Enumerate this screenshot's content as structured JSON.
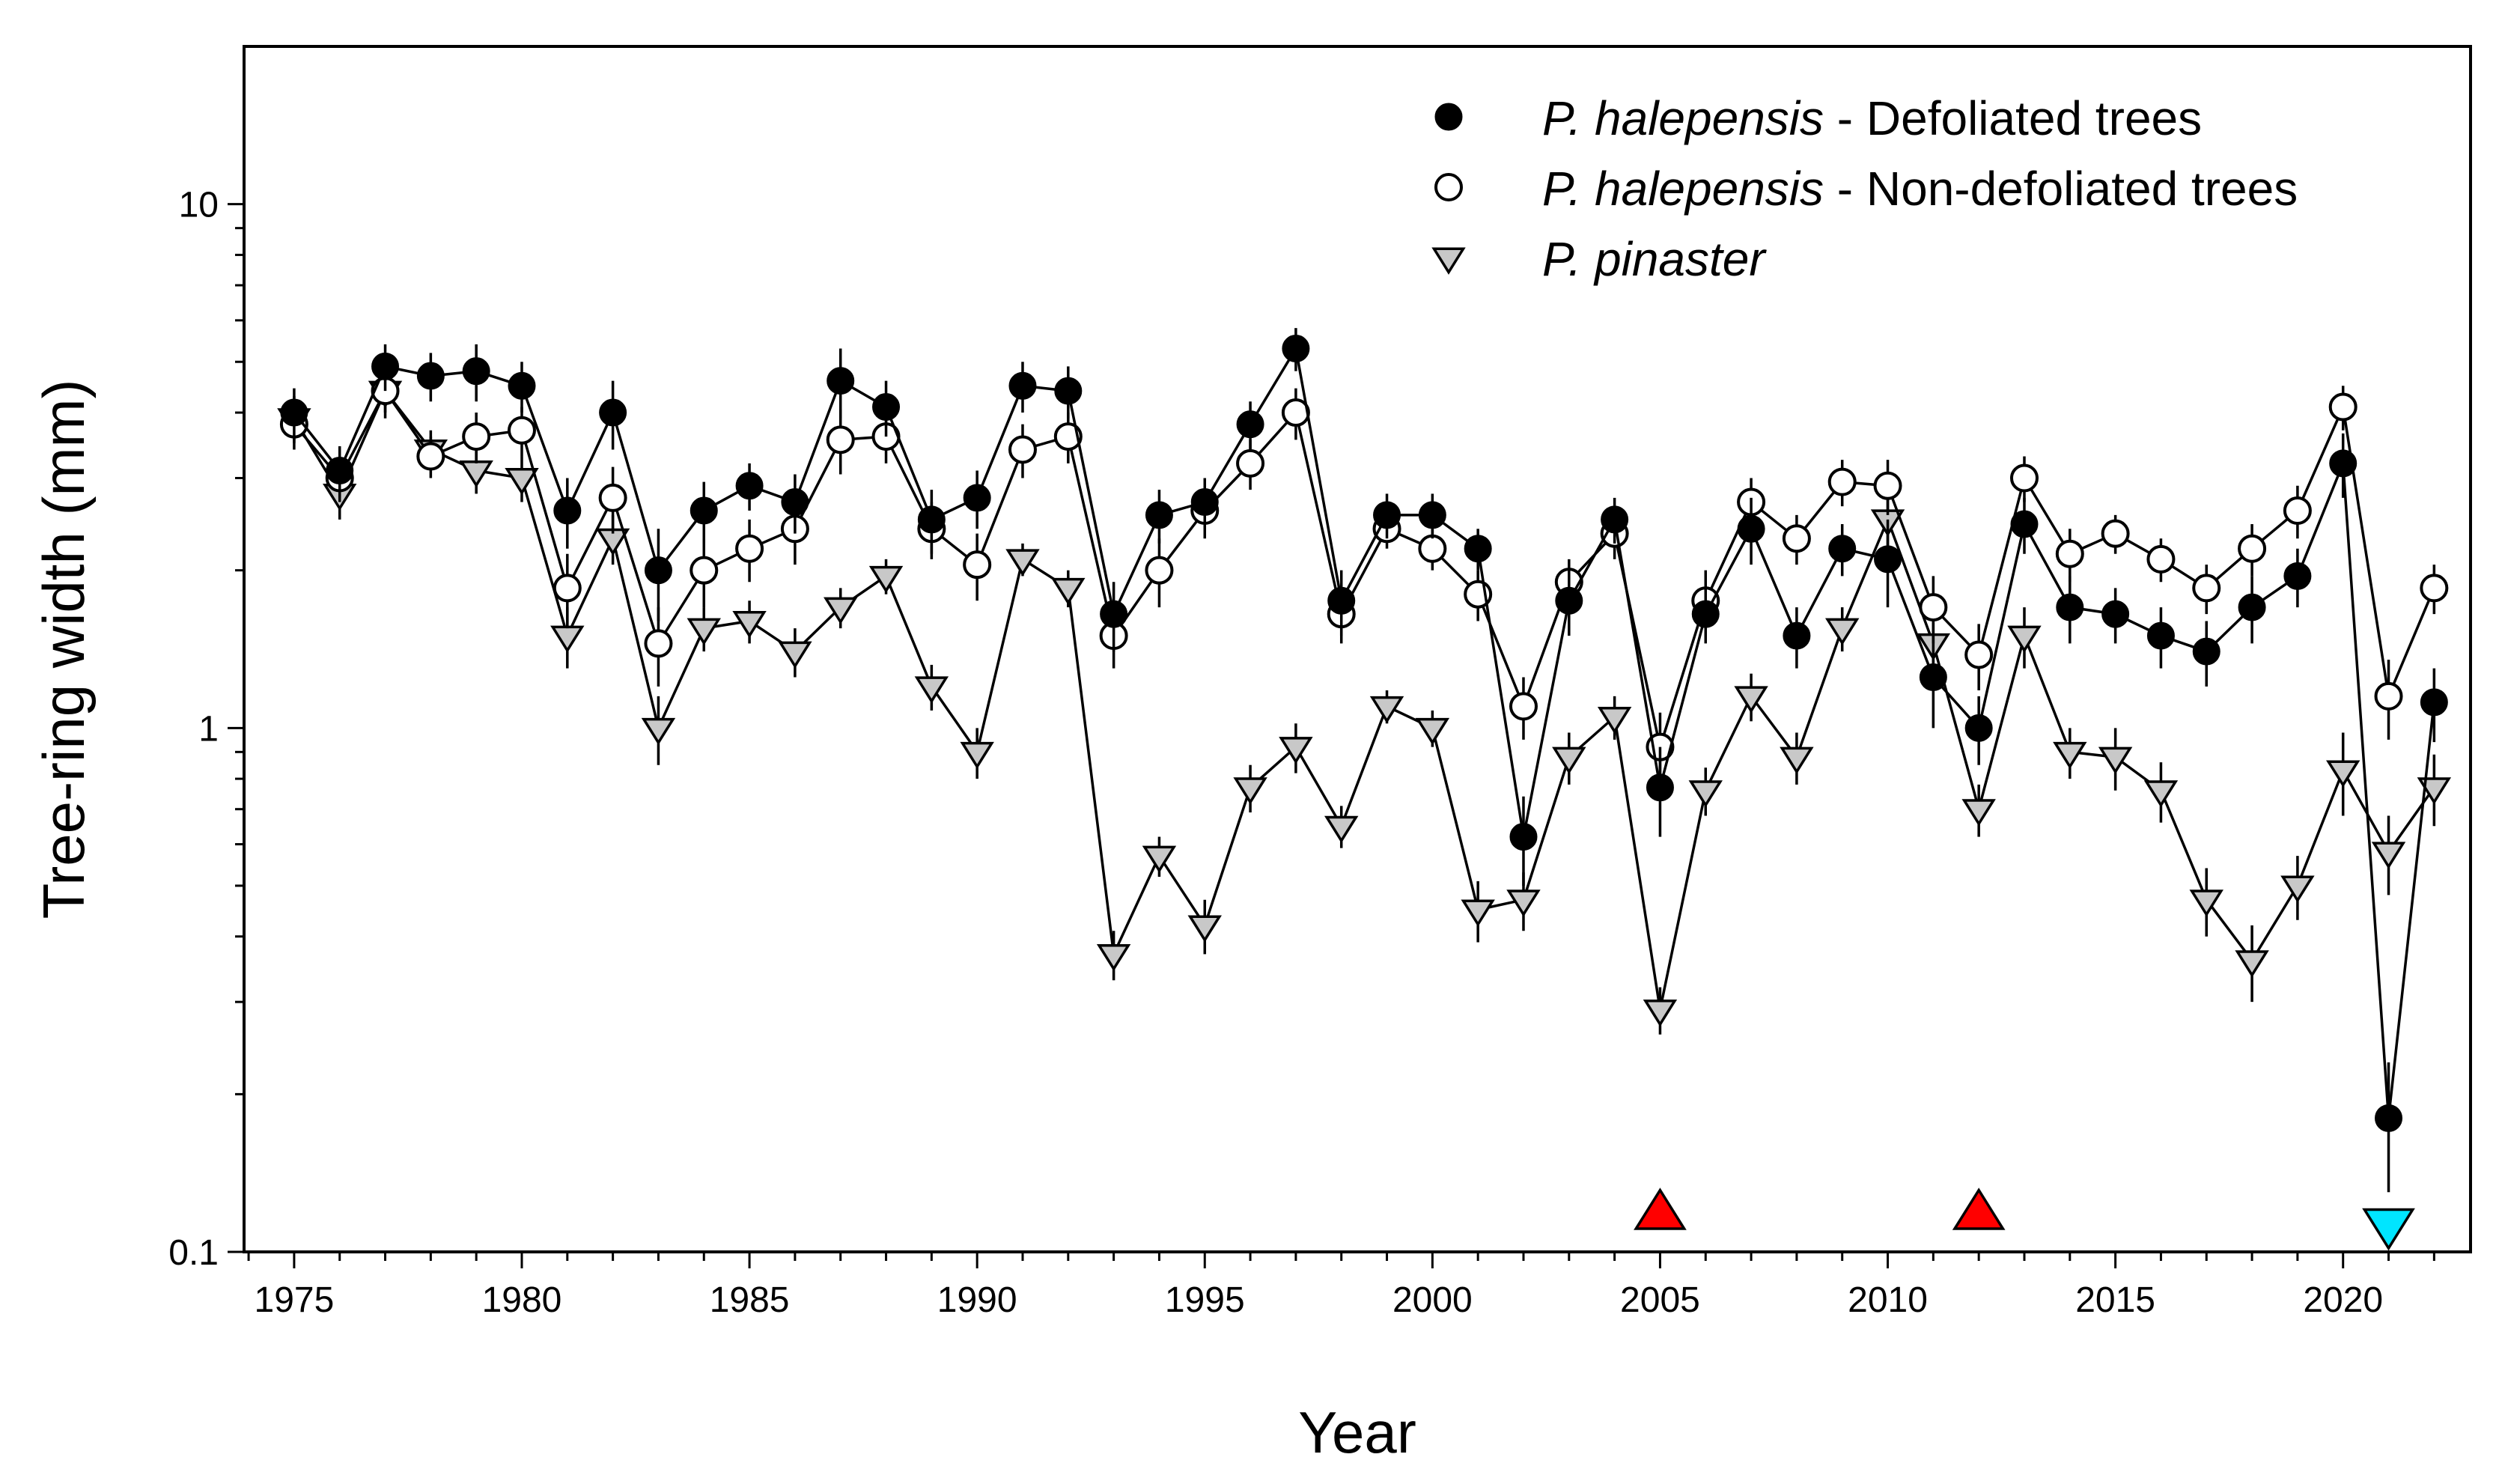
{
  "chart_data": {
    "type": "line",
    "title": "",
    "xlabel": "Year",
    "ylabel": "Tree-ring width (mm)",
    "yscale": "log",
    "ylim": [
      0.1,
      20
    ],
    "xlim": [
      1973.9,
      2022.8
    ],
    "x_ticks": [
      1975,
      1980,
      1985,
      1990,
      1995,
      2000,
      2005,
      2010,
      2015,
      2020
    ],
    "x_tick_labels": [
      "1975",
      "1980",
      "1985",
      "1990",
      "1995",
      "2000",
      "2005",
      "2010",
      "2015",
      "2020"
    ],
    "y_ticks": [
      0.1,
      1,
      10
    ],
    "y_tick_labels": [
      "0.1",
      "1",
      "10"
    ],
    "grid": false,
    "legend_position": "top-right",
    "x": [
      1975,
      1976,
      1977,
      1978,
      1979,
      1980,
      1981,
      1982,
      1983,
      1984,
      1985,
      1986,
      1987,
      1988,
      1989,
      1990,
      1991,
      1992,
      1993,
      1994,
      1995,
      1996,
      1997,
      1998,
      1999,
      2000,
      2001,
      2002,
      2003,
      2004,
      2005,
      2006,
      2007,
      2008,
      2009,
      2010,
      2011,
      2012,
      2013,
      2014,
      2015,
      2016,
      2017,
      2018,
      2019,
      2020,
      2021,
      2022
    ],
    "series": [
      {
        "name": "Defoliated trees",
        "legend_species": "P. halepensis",
        "legend_suffix": " - Defoliated trees",
        "marker": "filled-circle",
        "color": "#000000",
        "values": [
          4.0,
          3.1,
          4.9,
          4.7,
          4.8,
          4.5,
          2.6,
          4.0,
          2.0,
          2.6,
          2.9,
          2.7,
          4.6,
          4.1,
          2.5,
          2.75,
          4.5,
          4.4,
          1.65,
          2.55,
          2.7,
          3.8,
          5.3,
          1.75,
          2.55,
          2.55,
          2.2,
          0.62,
          1.75,
          2.5,
          0.77,
          1.65,
          2.4,
          1.5,
          2.2,
          2.1,
          1.25,
          1.0,
          2.45,
          1.7,
          1.65,
          1.5,
          1.4,
          1.7,
          1.95,
          3.2,
          0.18,
          1.12
        ],
        "errors": [
          0.45,
          0.35,
          0.5,
          0.5,
          0.6,
          0.5,
          0.4,
          0.6,
          0.4,
          0.35,
          0.3,
          0.35,
          0.7,
          0.5,
          0.35,
          0.35,
          0.5,
          0.5,
          0.25,
          0.3,
          0.3,
          0.4,
          0.5,
          0.25,
          0.25,
          0.25,
          0.2,
          0.12,
          0.25,
          0.25,
          0.15,
          0.2,
          0.35,
          0.2,
          0.25,
          0.4,
          0.25,
          0.15,
          0.3,
          0.25,
          0.2,
          0.2,
          0.2,
          0.25,
          0.25,
          0.45,
          0.05,
          0.18
        ]
      },
      {
        "name": "Non-defoliated trees",
        "legend_species": "P. halepensis",
        "legend_suffix": " - Non-defoliated trees",
        "marker": "open-circle",
        "color": "#000000",
        "values": [
          3.8,
          3.0,
          4.4,
          3.3,
          3.6,
          3.7,
          1.85,
          2.75,
          1.45,
          2.0,
          2.2,
          2.4,
          3.55,
          3.6,
          2.4,
          2.05,
          3.4,
          3.6,
          1.5,
          2.0,
          2.6,
          3.2,
          4.0,
          1.65,
          2.4,
          2.2,
          1.8,
          1.1,
          1.9,
          2.35,
          0.92,
          1.75,
          2.7,
          2.3,
          2.95,
          2.9,
          1.7,
          1.38,
          3.0,
          2.15,
          2.35,
          2.1,
          1.85,
          2.2,
          2.6,
          4.1,
          1.15,
          1.85
        ],
        "errors": [
          0.4,
          0.3,
          0.5,
          0.3,
          0.4,
          0.4,
          0.3,
          0.4,
          0.25,
          0.3,
          0.3,
          0.35,
          0.5,
          0.4,
          0.3,
          0.3,
          0.4,
          0.4,
          0.2,
          0.3,
          0.3,
          0.35,
          0.45,
          0.2,
          0.2,
          0.2,
          0.2,
          0.15,
          0.2,
          0.25,
          0.15,
          0.25,
          0.3,
          0.25,
          0.3,
          0.35,
          0.25,
          0.2,
          0.3,
          0.25,
          0.2,
          0.2,
          0.2,
          0.25,
          0.3,
          0.4,
          0.2,
          0.2
        ]
      },
      {
        "name": "P. pinaster",
        "legend_species": "P. pinaster",
        "legend_suffix": "",
        "marker": "down-triangle",
        "color": "#c8c8c8",
        "values": [
          3.9,
          2.8,
          4.4,
          3.4,
          3.1,
          3.0,
          1.5,
          2.3,
          1.0,
          1.55,
          1.6,
          1.4,
          1.7,
          1.95,
          1.2,
          0.9,
          2.1,
          1.85,
          0.37,
          0.57,
          0.42,
          0.77,
          0.92,
          0.65,
          1.1,
          1.0,
          0.45,
          0.47,
          0.88,
          1.05,
          0.29,
          0.76,
          1.15,
          0.88,
          1.55,
          2.5,
          1.45,
          0.7,
          1.5,
          0.9,
          0.88,
          0.76,
          0.47,
          0.36,
          0.5,
          0.83,
          0.58,
          0.77
        ],
        "errors": [
          0.4,
          0.3,
          0.4,
          0.3,
          0.3,
          0.3,
          0.2,
          0.25,
          0.15,
          0.15,
          0.15,
          0.15,
          0.15,
          0.15,
          0.12,
          0.1,
          0.15,
          0.15,
          0.04,
          0.05,
          0.05,
          0.08,
          0.1,
          0.06,
          0.08,
          0.08,
          0.06,
          0.06,
          0.1,
          0.1,
          0.03,
          0.08,
          0.12,
          0.1,
          0.15,
          0.3,
          0.2,
          0.08,
          0.2,
          0.1,
          0.12,
          0.1,
          0.07,
          0.06,
          0.07,
          0.15,
          0.1,
          0.12
        ]
      }
    ],
    "event_markers": [
      {
        "year": 2005,
        "value": 0.118,
        "shape": "up-triangle",
        "color": "#ff0000"
      },
      {
        "year": 2012,
        "value": 0.118,
        "shape": "up-triangle",
        "color": "#ff0000"
      },
      {
        "year": 2021,
        "value": 0.113,
        "shape": "down-triangle",
        "color": "#00e5ff"
      }
    ]
  }
}
